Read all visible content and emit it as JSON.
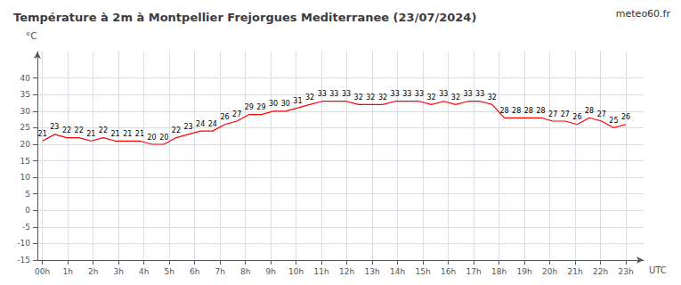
{
  "chart_data": {
    "type": "line",
    "title": "Température à 2m à Montpellier Frejorgues Mediterranee (23/07/2024)",
    "xlabel": "UTC",
    "ylabel": "°C",
    "annotations": [
      "meteo60.fr"
    ],
    "x": [
      0,
      0.4791666666666667,
      0.9583333333333334,
      1.4375,
      1.9166666666666667,
      2.3958333333333335,
      2.875,
      3.3541666666666665,
      3.8333333333333335,
      4.3125,
      4.791666666666667,
      5.270833333333333,
      5.75,
      6.229166666666667,
      6.708333333333333,
      7.1875,
      7.666666666666667,
      8.145833333333334,
      8.625,
      9.104166666666666,
      9.583333333333334,
      10.0625,
      10.541666666666666,
      11.020833333333334,
      11.5,
      11.979166666666666,
      12.458333333333334,
      12.9375,
      13.416666666666666,
      13.895833333333334,
      14.375,
      14.854166666666666,
      15.333333333333334,
      15.8125,
      16.291666666666668,
      16.770833333333332,
      17.25,
      17.729166666666668,
      18.208333333333332,
      18.6875,
      19.166666666666668,
      19.645833333333332,
      20.125,
      20.604166666666668,
      21.083333333333332,
      21.5625,
      22.041666666666668,
      22.520833333333332,
      23
    ],
    "values": [
      21,
      23,
      22,
      22,
      21,
      22,
      21,
      21,
      21,
      20,
      20,
      22,
      23,
      24,
      24,
      26,
      27,
      29,
      29,
      30,
      30,
      31,
      32,
      33,
      33,
      33,
      32,
      32,
      32,
      33,
      33,
      33,
      32,
      33,
      32,
      33,
      33,
      32,
      28,
      28,
      28,
      28,
      27,
      27,
      26,
      28,
      27,
      25,
      26
    ],
    "color": "#ff0000",
    "xlim": [
      -0.2,
      23.7
    ],
    "xticks": [
      {
        "value": 0,
        "label": "00h"
      },
      {
        "value": 1,
        "label": "1h"
      },
      {
        "value": 2,
        "label": "2h"
      },
      {
        "value": 3,
        "label": "3h"
      },
      {
        "value": 4,
        "label": "4h"
      },
      {
        "value": 5,
        "label": "5h"
      },
      {
        "value": 6,
        "label": "6h"
      },
      {
        "value": 7,
        "label": "7h"
      },
      {
        "value": 8,
        "label": "8h"
      },
      {
        "value": 9,
        "label": "9h"
      },
      {
        "value": 10,
        "label": "10h"
      },
      {
        "value": 11,
        "label": "11h"
      },
      {
        "value": 12,
        "label": "12h"
      },
      {
        "value": 13,
        "label": "13h"
      },
      {
        "value": 14,
        "label": "14h"
      },
      {
        "value": 15,
        "label": "15h"
      },
      {
        "value": 16,
        "label": "16h"
      },
      {
        "value": 17,
        "label": "17h"
      },
      {
        "value": 18,
        "label": "18h"
      },
      {
        "value": 19,
        "label": "19h"
      },
      {
        "value": 20,
        "label": "20h"
      },
      {
        "value": 21,
        "label": "21h"
      },
      {
        "value": 22,
        "label": "22h"
      },
      {
        "value": 23,
        "label": "23h"
      }
    ],
    "ylim": [
      -15,
      48
    ],
    "yticks": [
      -15,
      -10,
      -5,
      0,
      5,
      10,
      15,
      20,
      25,
      30,
      35,
      40
    ],
    "grid": true,
    "data_labels": true
  }
}
